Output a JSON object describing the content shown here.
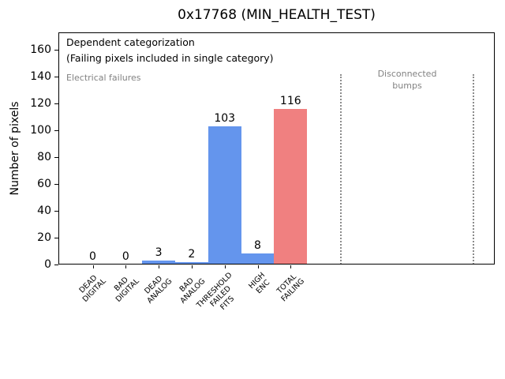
{
  "chart_data": {
    "type": "bar",
    "title": "0x17768 (MIN_HEALTH_TEST)",
    "xlabel": "",
    "ylabel": "Number of pixels",
    "ylim": [
      0,
      173
    ],
    "yticks": [
      0,
      20,
      40,
      60,
      80,
      100,
      120,
      140,
      160
    ],
    "grid": false,
    "legend": null,
    "categories": [
      "DEAD\nDIGITAL",
      "BAD\nDIGITAL",
      "DEAD\nANALOG",
      "BAD\nANALOG",
      "THRESHOLD\nFAILED\nFITS",
      "HIGH\nENC",
      "TOTAL\nFAILING"
    ],
    "values": [
      0,
      0,
      3,
      2,
      103,
      8,
      116
    ],
    "bar_value_labels": [
      "0",
      "0",
      "3",
      "2",
      "103",
      "8",
      "116"
    ],
    "bar_colors": [
      "#6495ed",
      "#6495ed",
      "#6495ed",
      "#6495ed",
      "#6495ed",
      "#6495ed",
      "#f08080"
    ],
    "annotations": {
      "categorization_line1": "Dependent categorization",
      "categorization_line2": "(Failing pixels included in single category)",
      "left_section_label": "Electrical failures",
      "right_section_label": "Disconnected\nbumps"
    },
    "separators": {
      "style": "dotted",
      "color": "#8c8c8c",
      "x_units": [
        7.52,
        11.54
      ],
      "top_value": 142
    },
    "colors": {
      "axis": "#000000",
      "blue_bar": "#6495ed",
      "total_bar": "#f08080",
      "section_label_text": "#828282",
      "background": "#ffffff"
    }
  }
}
